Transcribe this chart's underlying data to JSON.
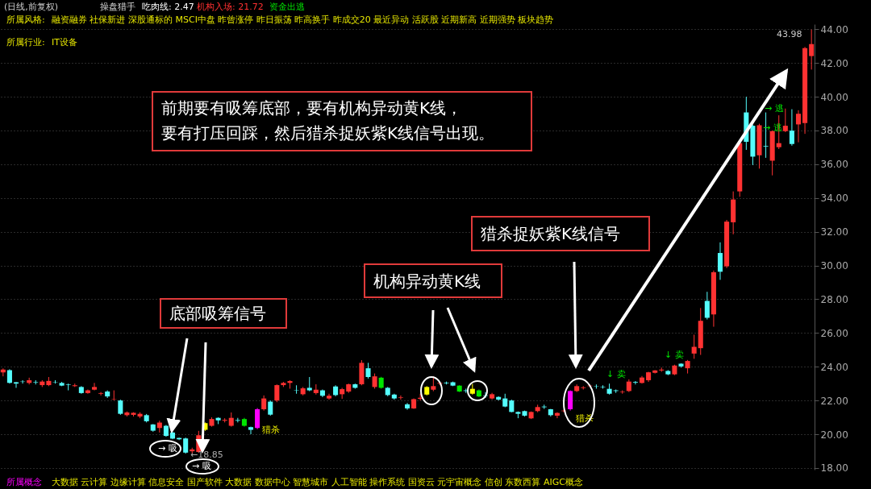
{
  "chart_data": {
    "type": "candlestick",
    "title": "(日线,前复权)",
    "annotations": [
      "操盘猎手",
      "吃肉线: 2.47",
      "机构入场: 21.72",
      "资金出逃",
      "所属风格:",
      "融资融券 社保新进 深股通标的 MSCI中盘 昨曾涨停 昨日振荡 昨高换手 昨成交20 最近异动 活跃股 近期新高 近期强势 板块趋势",
      "所属行业:",
      "IT设备",
      "前期要有吸筹底部，要有机构异动黄K线，",
      "要有打压回踩，然后猎杀捉妖紫K线信号出现。",
      "底部吸筹信号",
      "机构异动黄K线",
      "猎杀捉妖紫K线信号",
      "→ 吸",
      "→ 吸",
      "←18.85",
      "43.98",
      "猎杀",
      "猎杀",
      "↓ 卖",
      "↓ 卖",
      "→ 逃",
      "→ 逃",
      "所属概念",
      "大数据 云计算 边缘计算 信息安全 国产软件 大数据 数据中心 智慧城市 人工智能 操作系统 国资云 元宇宙概念 信创 东数西算 AIGC概念"
    ],
    "categories": [
      null,
      null,
      null,
      null,
      null,
      null,
      null,
      null,
      null,
      null,
      null,
      null,
      null,
      null,
      null,
      null,
      null,
      null,
      null,
      null,
      null,
      null,
      null,
      null,
      null,
      null,
      null,
      null,
      null,
      null,
      null,
      null,
      null,
      null,
      null,
      null,
      null,
      null,
      null,
      null,
      null,
      null,
      null,
      null,
      null,
      null,
      null,
      null,
      null,
      null,
      null,
      null,
      null,
      null,
      null,
      null,
      null,
      null,
      null,
      null,
      null,
      null,
      null,
      null,
      null,
      null,
      null,
      null,
      null,
      null,
      null,
      null,
      null,
      null,
      null,
      null,
      null,
      null,
      null,
      null,
      null,
      null,
      null,
      null,
      null,
      null,
      null,
      null,
      null,
      null,
      null,
      null,
      null,
      null,
      null,
      null,
      null,
      null,
      null,
      null,
      null,
      null,
      null,
      null,
      null,
      null,
      null,
      null,
      null,
      null,
      null,
      null,
      null,
      null,
      null,
      null,
      null,
      null,
      null,
      null,
      null,
      null,
      null,
      null,
      null
    ],
    "ohlc": [
      [
        23.67,
        23.9,
        23.43,
        23.83
      ],
      [
        23.79,
        23.85,
        23.0,
        23.04
      ],
      [
        23.08,
        23.1,
        22.75,
        23.0
      ],
      [
        23.12,
        23.2,
        23.0,
        23.1
      ],
      [
        23.04,
        23.35,
        22.95,
        23.2
      ],
      [
        23.1,
        23.2,
        22.95,
        23.07
      ],
      [
        22.91,
        23.2,
        22.8,
        23.12
      ],
      [
        22.91,
        23.39,
        22.85,
        23.16
      ],
      [
        23.1,
        23.2,
        23.0,
        23.08
      ],
      [
        23.04,
        23.1,
        22.85,
        22.88
      ],
      [
        22.95,
        23.0,
        22.6,
        22.92
      ],
      [
        22.85,
        23.0,
        22.8,
        22.9
      ],
      [
        22.8,
        22.85,
        22.4,
        22.44
      ],
      [
        22.44,
        22.65,
        22.4,
        22.6
      ],
      [
        22.64,
        23.04,
        22.6,
        22.8
      ],
      [
        22.4,
        22.5,
        22.3,
        22.44
      ],
      [
        22.53,
        22.6,
        22.15,
        22.24
      ],
      [
        22.08,
        22.6,
        22.0,
        22.1
      ],
      [
        22.0,
        22.05,
        21.15,
        21.21
      ],
      [
        21.13,
        21.35,
        21.05,
        21.29
      ],
      [
        21.15,
        21.3,
        21.05,
        21.27
      ],
      [
        21.05,
        21.3,
        20.95,
        21.21
      ],
      [
        21.13,
        21.2,
        20.7,
        20.77
      ],
      [
        20.58,
        20.6,
        20.15,
        20.21
      ],
      [
        20.37,
        20.8,
        20.1,
        20.69
      ],
      [
        20.5,
        20.55,
        19.85,
        19.9
      ],
      [
        20.1,
        20.15,
        19.7,
        19.74
      ],
      [
        19.78,
        19.8,
        19.65,
        19.7
      ],
      [
        19.75,
        19.8,
        18.85,
        18.91
      ],
      [
        18.99,
        19.2,
        18.85,
        19.1
      ],
      [
        18.95,
        20.2,
        18.9,
        19.94
      ],
      [
        20.26,
        20.7,
        20.2,
        20.66
      ],
      [
        20.5,
        21.0,
        20.45,
        20.9
      ],
      [
        20.97,
        21.0,
        20.6,
        20.82
      ],
      [
        20.8,
        20.95,
        20.7,
        20.85
      ],
      [
        20.5,
        21.29,
        20.45,
        20.97
      ],
      [
        20.84,
        20.97,
        20.7,
        20.8
      ],
      [
        20.9,
        20.97,
        20.45,
        20.5
      ],
      [
        20.42,
        20.45,
        20.0,
        20.26
      ],
      [
        20.37,
        21.55,
        20.3,
        21.48
      ],
      [
        21.48,
        22.3,
        21.4,
        22.12
      ],
      [
        21.93,
        22.0,
        21.1,
        21.16
      ],
      [
        22.0,
        22.95,
        21.9,
        22.91
      ],
      [
        22.91,
        23.1,
        22.8,
        23.04
      ],
      [
        23.04,
        23.2,
        22.7,
        23.15
      ],
      [
        22.6,
        22.9,
        22.4,
        22.58
      ],
      [
        22.37,
        22.8,
        22.3,
        22.72
      ],
      [
        22.75,
        23.39,
        22.55,
        22.6
      ],
      [
        22.44,
        22.96,
        22.35,
        22.64
      ],
      [
        22.6,
        22.65,
        22.2,
        22.28
      ],
      [
        22.12,
        22.4,
        22.05,
        22.28
      ],
      [
        22.83,
        22.9,
        22.25,
        22.32
      ],
      [
        22.37,
        22.75,
        22.1,
        22.67
      ],
      [
        22.53,
        23.0,
        22.45,
        22.96
      ],
      [
        22.96,
        23.0,
        22.7,
        22.75
      ],
      [
        22.96,
        24.39,
        22.9,
        24.23
      ],
      [
        23.91,
        24.23,
        23.3,
        23.39
      ],
      [
        22.8,
        23.6,
        22.7,
        23.43
      ],
      [
        23.35,
        23.4,
        22.7,
        22.75
      ],
      [
        22.75,
        22.8,
        22.25,
        22.32
      ],
      [
        22.35,
        22.4,
        22.05,
        22.12
      ],
      [
        22.15,
        22.3,
        22.05,
        22.18
      ],
      [
        21.77,
        21.85,
        21.45,
        21.53
      ],
      [
        21.53,
        22.12,
        21.5,
        22.08
      ],
      [
        22.1,
        22.4,
        22.0,
        22.16
      ],
      [
        22.35,
        22.85,
        22.3,
        22.8
      ],
      [
        22.64,
        23.43,
        22.55,
        22.85
      ],
      [
        23.0,
        23.1,
        22.9,
        23.04
      ],
      [
        23.06,
        23.12,
        22.95,
        23.02
      ],
      [
        23.08,
        23.12,
        22.85,
        22.88
      ],
      [
        22.88,
        22.9,
        22.5,
        22.53
      ],
      [
        22.6,
        22.7,
        22.45,
        22.56
      ],
      [
        22.4,
        22.98,
        22.35,
        22.69
      ],
      [
        22.6,
        22.65,
        22.2,
        22.24
      ],
      [
        22.3,
        22.5,
        22.15,
        22.27
      ],
      [
        22.12,
        22.45,
        22.05,
        22.37
      ],
      [
        22.21,
        22.25,
        22.0,
        22.05
      ],
      [
        22.12,
        22.4,
        21.6,
        21.64
      ],
      [
        22.0,
        22.05,
        21.3,
        21.32
      ],
      [
        21.32,
        21.35,
        20.95,
        21.21
      ],
      [
        21.37,
        21.4,
        21.05,
        21.1
      ],
      [
        20.94,
        21.35,
        20.9,
        21.32
      ],
      [
        21.37,
        21.75,
        21.3,
        21.61
      ],
      [
        21.64,
        21.75,
        21.5,
        21.6
      ],
      [
        21.48,
        21.5,
        21.05,
        21.13
      ],
      [
        21.1,
        21.3,
        20.95,
        21.26
      ],
      [
        21.37,
        21.45,
        21.3,
        21.4
      ],
      [
        21.48,
        22.6,
        21.4,
        22.56
      ],
      [
        22.56,
        22.95,
        22.5,
        22.85
      ],
      [
        22.74,
        22.85,
        22.65,
        22.78
      ],
      [
        22.85,
        22.95,
        22.8,
        22.88
      ],
      [
        22.85,
        22.95,
        22.7,
        22.83
      ],
      [
        22.82,
        22.9,
        22.7,
        22.79
      ],
      [
        22.69,
        23.0,
        22.35,
        22.4
      ],
      [
        22.6,
        22.65,
        22.45,
        22.56
      ],
      [
        22.5,
        22.6,
        22.4,
        22.53
      ],
      [
        22.56,
        23.25,
        22.5,
        23.12
      ],
      [
        23.1,
        23.15,
        22.95,
        23.06
      ],
      [
        23.04,
        23.45,
        23.0,
        23.36
      ],
      [
        23.2,
        23.7,
        23.1,
        23.67
      ],
      [
        23.64,
        23.8,
        23.6,
        23.78
      ],
      [
        23.78,
        23.95,
        23.7,
        23.83
      ],
      [
        23.75,
        23.8,
        23.5,
        23.55
      ],
      [
        23.55,
        24.12,
        23.5,
        24.07
      ],
      [
        24.18,
        24.2,
        23.95,
        24.02
      ],
      [
        23.91,
        24.4,
        23.6,
        24.34
      ],
      [
        24.78,
        25.9,
        24.47,
        25.18
      ],
      [
        25.1,
        27.48,
        24.7,
        26.72
      ],
      [
        27.9,
        28.44,
        26.8,
        26.9
      ],
      [
        27.1,
        29.7,
        26.37,
        29.6
      ],
      [
        30.74,
        31.37,
        29.15,
        29.63
      ],
      [
        29.95,
        32.7,
        29.85,
        32.6
      ],
      [
        32.56,
        34.39,
        31.85,
        33.91
      ],
      [
        34.39,
        37.35,
        34.07,
        37.25
      ],
      [
        39.07,
        40.0,
        36.85,
        37.33
      ],
      [
        38.28,
        38.35,
        35.95,
        36.45
      ],
      [
        36.53,
        38.4,
        35.74,
        38.31
      ],
      [
        37.08,
        39.07,
        36.38,
        37.04
      ],
      [
        36.21,
        38.0,
        35.34,
        37.96
      ],
      [
        37.01,
        38.9,
        36.9,
        37.25
      ],
      [
        37.96,
        39.3,
        37.9,
        38.28
      ],
      [
        37.99,
        39.26,
        37.1,
        37.2
      ],
      [
        38.36,
        39.2,
        37.3,
        38.99
      ],
      [
        38.44,
        42.95,
        37.8,
        42.88
      ],
      [
        42.41,
        43.98,
        41.61,
        43.12
      ]
    ],
    "colors": [
      "#ff3232",
      "#54fcfc",
      "#54fcfc",
      "#54fcfc",
      "#ff3232",
      "#54fcfc",
      "#ff3232",
      "#ff3232",
      "#54fcfc",
      "#54fcfc",
      "#54fcfc",
      "#ff3232",
      "#54fcfc",
      "#ff3232",
      "#ff3232",
      "#ff3232",
      "#54fcfc",
      "#ff3232",
      "#54fcfc",
      "#ff3232",
      "#ff3232",
      "#ff3232",
      "#54fcfc",
      "#54fcfc",
      "#ff3232",
      "#54fcfc",
      "#54fcfc",
      "#54fcfc",
      "#54fcfc",
      "#ff3232",
      "#ff3232",
      "#ffff00",
      "#ff3232",
      "#54fcfc",
      "#ff3232",
      "#ff3232",
      "#54fcfc",
      "#00e600",
      "#54fcfc",
      "#ff00ff",
      "#ff3232",
      "#54fcfc",
      "#ff3232",
      "#ff3232",
      "#ff3232",
      "#54fcfc",
      "#ff3232",
      "#54fcfc",
      "#ff3232",
      "#54fcfc",
      "#ff3232",
      "#54fcfc",
      "#ff3232",
      "#ff3232",
      "#54fcfc",
      "#ff3232",
      "#54fcfc",
      "#ff3232",
      "#00e600",
      "#54fcfc",
      "#54fcfc",
      "#ff3232",
      "#54fcfc",
      "#ff3232",
      "#ff3232",
      "#ffff00",
      "#ff3232",
      "#ff3232",
      "#54fcfc",
      "#54fcfc",
      "#00e600",
      "#54fcfc",
      "#ffff00",
      "#00e600",
      "#54fcfc",
      "#ff3232",
      "#54fcfc",
      "#54fcfc",
      "#54fcfc",
      "#54fcfc",
      "#54fcfc",
      "#ff3232",
      "#ff3232",
      "#54fcfc",
      "#54fcfc",
      "#ff3232",
      "#ff3232",
      "#ff00ff",
      "#ff3232",
      "#ff3232",
      "#ff3232",
      "#54fcfc",
      "#54fcfc",
      "#54fcfc",
      "#54fcfc",
      "#ff3232",
      "#ff3232",
      "#54fcfc",
      "#ff3232",
      "#ff3232",
      "#ff3232",
      "#ff3232",
      "#54fcfc",
      "#ff3232",
      "#54fcfc",
      "#ff3232",
      "#ff3232",
      "#ff3232",
      "#54fcfc",
      "#ff3232",
      "#54fcfc",
      "#ff3232",
      "#ff3232",
      "#ff3232",
      "#54fcfc",
      "#54fcfc",
      "#ff3232",
      "#54fcfc",
      "#ff3232",
      "#ff3232",
      "#ff3232",
      "#54fcfc",
      "#ff3232",
      "#ff3232",
      "#ff3232"
    ],
    "ylim": [
      17.9,
      44.3
    ],
    "yticks": [
      {
        "value": 18,
        "label": "18.00"
      },
      {
        "value": 20,
        "label": "20.00"
      },
      {
        "value": 22,
        "label": "22.00"
      },
      {
        "value": 24,
        "label": "24.00"
      },
      {
        "value": 26,
        "label": "26.00"
      },
      {
        "value": 28,
        "label": "28.00"
      },
      {
        "value": 30,
        "label": "30.00"
      },
      {
        "value": 32,
        "label": "32.00"
      },
      {
        "value": 34,
        "label": "34.00"
      },
      {
        "value": 36,
        "label": "36.00"
      },
      {
        "value": 38,
        "label": "38.00"
      },
      {
        "value": 40,
        "label": "40.00"
      },
      {
        "value": 42,
        "label": "42.00"
      },
      {
        "value": 44,
        "label": "44.00"
      }
    ],
    "grid": "y",
    "tick_labels": "y"
  }
}
